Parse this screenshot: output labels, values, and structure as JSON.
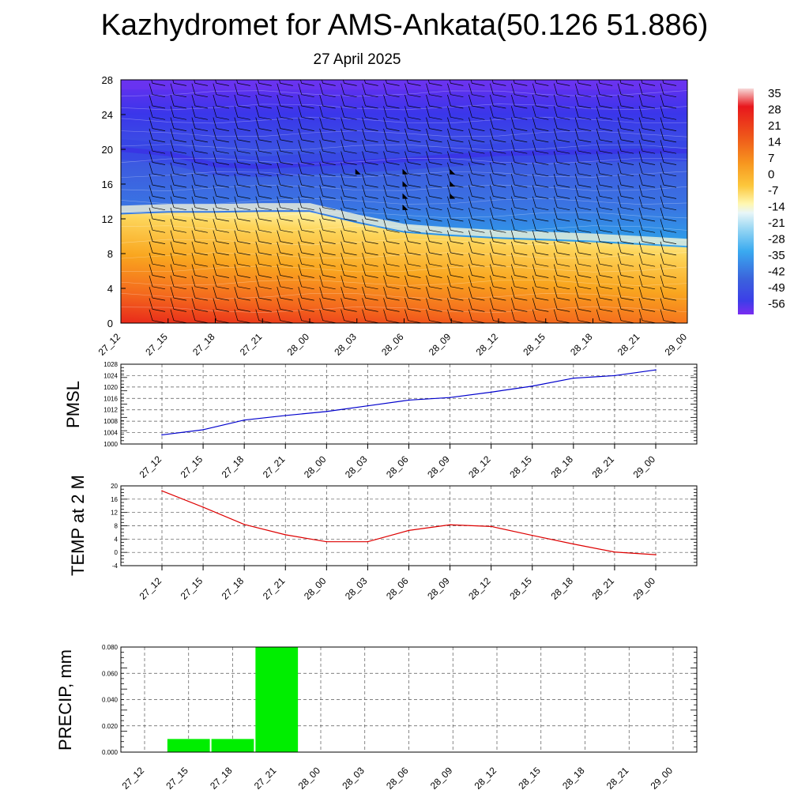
{
  "title": "Kazhydromet for AMS-Ankata(50.126 51.886)",
  "date": "27 April 2025",
  "time_labels": [
    "27_12",
    "27_15",
    "27_18",
    "27_21",
    "28_00",
    "28_03",
    "28_06",
    "28_09",
    "28_12",
    "28_15",
    "28_18",
    "28_21",
    "29_00"
  ],
  "chart_data": [
    {
      "type": "heatmap",
      "x": [
        "27_12",
        "27_15",
        "27_18",
        "27_21",
        "28_00",
        "28_03",
        "28_06",
        "28_09",
        "28_12",
        "28_15",
        "28_18",
        "28_21",
        "29_00"
      ],
      "y_ticks": [
        0,
        4,
        8,
        12,
        16,
        20,
        24,
        28
      ],
      "ylim": [
        0,
        28
      ],
      "colorbar": {
        "labels": [
          "35",
          "28",
          "21",
          "14",
          "7",
          "0",
          "-7",
          "-14",
          "-21",
          "-28",
          "-35",
          "-42",
          "-49",
          "-56"
        ],
        "colors": [
          "#f7f7f7",
          "#e8171c",
          "#ef4a1a",
          "#f4791c",
          "#f7a21f",
          "#fcc23b",
          "#ffe98a",
          "#fffccc",
          "#c8ecf8",
          "#62bff0",
          "#2aa0e8",
          "#3b6fdd",
          "#3e3fe6",
          "#7a2cf0"
        ]
      },
      "surfaces": [
        {
          "name": "freezing_level",
          "values": [
            12.5,
            12.7,
            12.7,
            12.8,
            12.8,
            11.5,
            10.4,
            10.0,
            9.7,
            9.5,
            9.3,
            9.0,
            8.7
          ]
        },
        {
          "name": "cold_core",
          "values": [
            20.0,
            19.5,
            18.2,
            18.0,
            18.3,
            18.5,
            18.8,
            19.2,
            19.5,
            19.6,
            19.7,
            19.8,
            19.8
          ]
        }
      ],
      "barbs_heavy": [
        {
          "x": "28_03",
          "y": [
            17.2
          ]
        },
        {
          "x": "28_06",
          "y": [
            17.2,
            15.8,
            14.4,
            13.1
          ]
        },
        {
          "x": "28_09",
          "y": [
            17.2,
            15.8,
            14.4
          ]
        }
      ]
    },
    {
      "type": "line",
      "ylabel": "PMSL",
      "x": [
        "27_12",
        "27_15",
        "27_18",
        "27_21",
        "28_00",
        "28_03",
        "28_06",
        "28_09",
        "28_12",
        "28_15",
        "28_18",
        "28_21",
        "29_00"
      ],
      "series": [
        {
          "color": "#0000cc",
          "values": [
            1003.2,
            1005.0,
            1008.4,
            1010.0,
            1011.4,
            1013.4,
            1015.4,
            1016.3,
            1018.2,
            1020.3,
            1023.1,
            1024.0,
            1026.0
          ]
        }
      ],
      "ylim": [
        1000,
        1028
      ],
      "y_ticks": [
        1000,
        1004,
        1008,
        1012,
        1016,
        1020,
        1024,
        1028
      ],
      "grid": true
    },
    {
      "type": "line",
      "ylabel": "TEMP at 2 M",
      "x": [
        "27_12",
        "27_15",
        "27_18",
        "27_21",
        "28_00",
        "28_03",
        "28_06",
        "28_09",
        "28_12",
        "28_15",
        "28_18",
        "28_21",
        "29_00"
      ],
      "series": [
        {
          "color": "#dd0000",
          "values": [
            18.5,
            13.6,
            8.4,
            5.3,
            3.2,
            3.2,
            6.6,
            8.3,
            7.8,
            5.1,
            2.5,
            0.1,
            -0.7
          ]
        }
      ],
      "ylim": [
        -4,
        20
      ],
      "y_ticks": [
        -4,
        0,
        4,
        8,
        12,
        16,
        20
      ],
      "grid": true
    },
    {
      "type": "bar",
      "ylabel": "PRECIP, mm",
      "x": [
        "27_12",
        "27_15",
        "27_18",
        "27_21",
        "28_00",
        "28_03",
        "28_06",
        "28_09",
        "28_12",
        "28_15",
        "28_18",
        "28_21",
        "29_00"
      ],
      "values": [
        0,
        0.01,
        0.01,
        0.08,
        0,
        0,
        0,
        0,
        0,
        0,
        0,
        0,
        0
      ],
      "bar_color": "#00ee00",
      "ylim": [
        0,
        0.08
      ],
      "y_ticks": [
        "0.000",
        "0.020",
        "0.040",
        "0.060",
        "0.080"
      ],
      "grid": true
    }
  ]
}
